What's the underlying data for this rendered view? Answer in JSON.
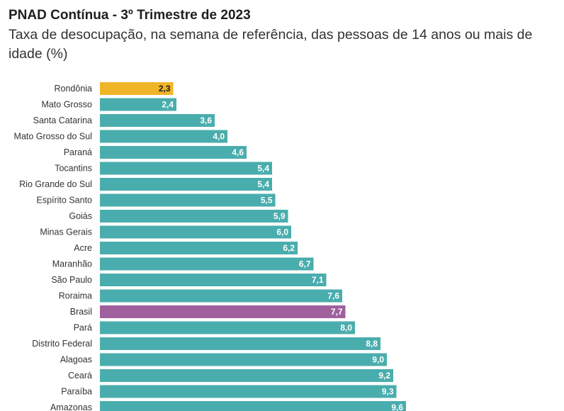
{
  "header": {
    "title": "PNAD Contínua - 3º Trimestre de 2023",
    "subtitle": "Taxa de desocupação, na semana de referência, das pessoas de 14 anos ou mais de idade (%)"
  },
  "colors": {
    "default": "#4aadad",
    "highlight_low": "#f0b429",
    "national": "#a0609e"
  },
  "chart_data": {
    "type": "bar",
    "orientation": "horizontal",
    "title": "PNAD Contínua - 3º Trimestre de 2023",
    "subtitle": "Taxa de desocupação, na semana de referência, das pessoas de 14 anos ou mais de idade (%)",
    "xlabel": "",
    "ylabel": "",
    "categories": [
      "Rondônia",
      "Mato Grosso",
      "Santa Catarina",
      "Mato Grosso do Sul",
      "Paraná",
      "Tocantins",
      "Rio Grande do Sul",
      "Espírito Santo",
      "Goiás",
      "Minas Gerais",
      "Acre",
      "Maranhão",
      "São Paulo",
      "Roraima",
      "Brasil",
      "Pará",
      "Distrito Federal",
      "Alagoas",
      "Ceará",
      "Paraíba",
      "Amazonas"
    ],
    "values": [
      2.3,
      2.4,
      3.6,
      4.0,
      4.6,
      5.4,
      5.4,
      5.5,
      5.9,
      6.0,
      6.2,
      6.7,
      7.1,
      7.6,
      7.7,
      8.0,
      8.8,
      9.0,
      9.2,
      9.3,
      9.6
    ],
    "value_labels": [
      "2,3",
      "2,4",
      "3,6",
      "4,0",
      "4,6",
      "5,4",
      "5,4",
      "5,5",
      "5,9",
      "6,0",
      "6,2",
      "6,7",
      "7,1",
      "7,6",
      "7,7",
      "8,0",
      "8,8",
      "9,0",
      "9,2",
      "9,3",
      "9,6"
    ],
    "highlights": {
      "Rondônia": "highlight_low",
      "Brasil": "national"
    },
    "xlim": [
      0,
      10
    ],
    "grid": false,
    "legend": "none"
  }
}
